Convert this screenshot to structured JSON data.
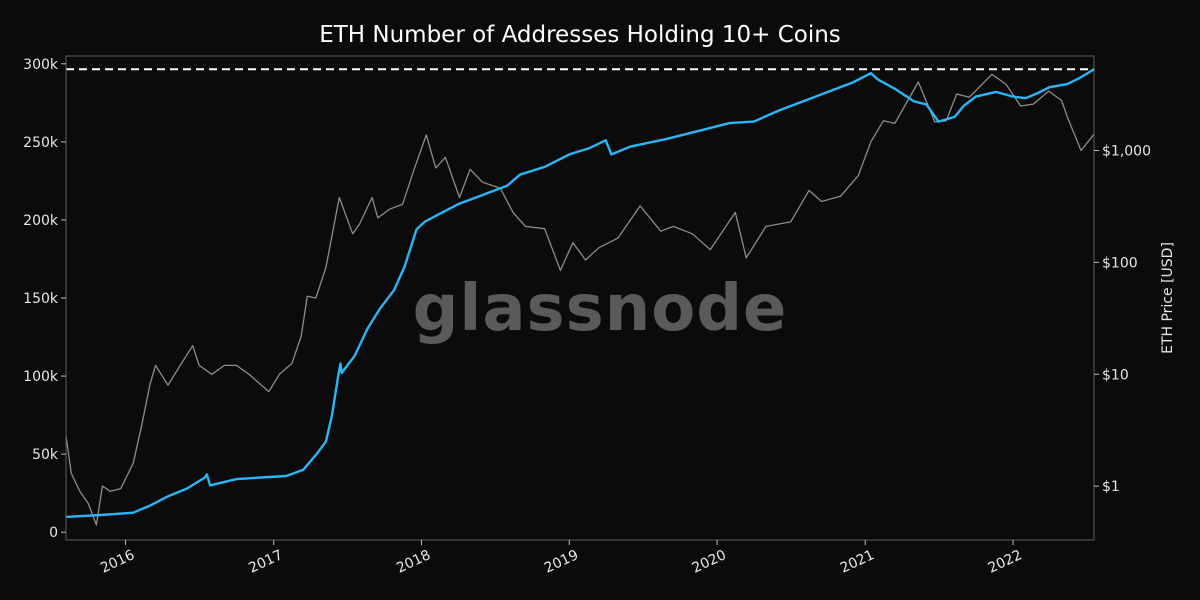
{
  "colors": {
    "background": "#0b0b0b",
    "frame": "#5c5c5c",
    "addresses": "#29b6f6",
    "price": "#8c8c8c",
    "ath_line": "#ffffff",
    "watermark": "#5a5a5a"
  },
  "chart_data": {
    "type": "line",
    "title": "ETH Number of Addresses Holding 10+ Coins",
    "watermark": "glassnode",
    "grid": false,
    "x_ticks": [
      "2016",
      "2017",
      "2018",
      "2019",
      "2020",
      "2021",
      "2022"
    ],
    "xlim": [
      "2015-08-07",
      "2022-07-20"
    ],
    "left_axis": {
      "label": "",
      "ylim": [
        -5000,
        305000
      ],
      "ticks": [
        0,
        50000,
        100000,
        150000,
        200000,
        250000,
        300000
      ],
      "tick_labels": [
        "0",
        "50k",
        "100k",
        "150k",
        "200k",
        "250k",
        "300k"
      ]
    },
    "right_axis": {
      "label": "ETH Price [USD]",
      "scale": "log",
      "ylim": [
        0.33,
        7000
      ],
      "ticks": [
        1,
        10,
        100,
        1000
      ],
      "tick_labels": [
        "$1",
        "$10",
        "$100",
        "$1,000"
      ]
    },
    "reference_line": {
      "axis": "left",
      "value": 296500,
      "style": "dashed"
    },
    "series": [
      {
        "axis": "left",
        "points": [
          [
            "2015-08-07",
            9800
          ],
          [
            "2015-11-01",
            11000
          ],
          [
            "2016-01-20",
            12500
          ],
          [
            "2016-03-01",
            17000
          ],
          [
            "2016-04-15",
            23000
          ],
          [
            "2016-06-01",
            28000
          ],
          [
            "2016-07-15",
            35000
          ],
          [
            "2016-07-20",
            37000
          ],
          [
            "2016-07-28",
            30000
          ],
          [
            "2016-10-01",
            34000
          ],
          [
            "2016-12-01",
            35000
          ],
          [
            "2017-02-01",
            36000
          ],
          [
            "2017-03-15",
            40000
          ],
          [
            "2017-04-20",
            51000
          ],
          [
            "2017-05-10",
            58000
          ],
          [
            "2017-05-25",
            75000
          ],
          [
            "2017-06-08",
            98000
          ],
          [
            "2017-06-15",
            108000
          ],
          [
            "2017-06-18",
            102000
          ],
          [
            "2017-07-20",
            113000
          ],
          [
            "2017-08-20",
            130000
          ],
          [
            "2017-09-20",
            143000
          ],
          [
            "2017-10-25",
            155000
          ],
          [
            "2017-11-20",
            170000
          ],
          [
            "2017-12-20",
            194000
          ],
          [
            "2018-01-10",
            199000
          ],
          [
            "2018-02-01",
            202000
          ],
          [
            "2018-04-01",
            210000
          ],
          [
            "2018-06-01",
            216000
          ],
          [
            "2018-08-01",
            222000
          ],
          [
            "2018-09-01",
            229000
          ],
          [
            "2018-11-01",
            234000
          ],
          [
            "2019-01-01",
            242000
          ],
          [
            "2019-02-20",
            246000
          ],
          [
            "2019-04-01",
            251000
          ],
          [
            "2019-04-15",
            242000
          ],
          [
            "2019-06-01",
            247000
          ],
          [
            "2019-09-01",
            252000
          ],
          [
            "2019-12-01",
            258000
          ],
          [
            "2020-02-01",
            262000
          ],
          [
            "2020-04-01",
            263000
          ],
          [
            "2020-06-01",
            270000
          ],
          [
            "2020-08-01",
            276000
          ],
          [
            "2020-10-01",
            282000
          ],
          [
            "2020-12-01",
            288000
          ],
          [
            "2021-01-15",
            294000
          ],
          [
            "2021-02-01",
            290000
          ],
          [
            "2021-03-15",
            284000
          ],
          [
            "2021-05-01",
            276000
          ],
          [
            "2021-06-01",
            274000
          ],
          [
            "2021-07-01",
            263000
          ],
          [
            "2021-08-10",
            266000
          ],
          [
            "2021-09-01",
            273000
          ],
          [
            "2021-10-01",
            279000
          ],
          [
            "2021-11-20",
            282000
          ],
          [
            "2022-01-01",
            279000
          ],
          [
            "2022-02-01",
            278000
          ],
          [
            "2022-03-01",
            281000
          ],
          [
            "2022-04-01",
            285000
          ],
          [
            "2022-05-15",
            287000
          ],
          [
            "2022-06-15",
            291000
          ],
          [
            "2022-07-20",
            296500
          ]
        ]
      },
      {
        "axis": "right",
        "points": [
          [
            "2015-08-07",
            2.8
          ],
          [
            "2015-08-20",
            1.3
          ],
          [
            "2015-09-10",
            0.9
          ],
          [
            "2015-10-01",
            0.7
          ],
          [
            "2015-10-21",
            0.45
          ],
          [
            "2015-11-05",
            1.0
          ],
          [
            "2015-11-25",
            0.9
          ],
          [
            "2015-12-20",
            0.95
          ],
          [
            "2016-01-20",
            1.6
          ],
          [
            "2016-02-10",
            3.5
          ],
          [
            "2016-03-01",
            8.0
          ],
          [
            "2016-03-15",
            12.0
          ],
          [
            "2016-04-15",
            8.0
          ],
          [
            "2016-05-15",
            12.0
          ],
          [
            "2016-06-15",
            18.0
          ],
          [
            "2016-07-01",
            12.0
          ],
          [
            "2016-08-01",
            10.0
          ],
          [
            "2016-09-01",
            12.0
          ],
          [
            "2016-10-01",
            12.0
          ],
          [
            "2016-11-01",
            10.0
          ],
          [
            "2016-12-20",
            7.0
          ],
          [
            "2017-01-15",
            10.0
          ],
          [
            "2017-02-15",
            12.5
          ],
          [
            "2017-03-10",
            22.0
          ],
          [
            "2017-03-25",
            50.0
          ],
          [
            "2017-04-15",
            48.0
          ],
          [
            "2017-05-10",
            90.0
          ],
          [
            "2017-06-12",
            380.0
          ],
          [
            "2017-07-15",
            180.0
          ],
          [
            "2017-08-01",
            220.0
          ],
          [
            "2017-09-01",
            380.0
          ],
          [
            "2017-09-15",
            250.0
          ],
          [
            "2017-10-15",
            300.0
          ],
          [
            "2017-11-15",
            330.0
          ],
          [
            "2017-12-15",
            700.0
          ],
          [
            "2018-01-13",
            1380.0
          ],
          [
            "2018-02-05",
            700.0
          ],
          [
            "2018-03-01",
            870.0
          ],
          [
            "2018-04-05",
            380.0
          ],
          [
            "2018-05-01",
            680.0
          ],
          [
            "2018-06-01",
            520.0
          ],
          [
            "2018-07-15",
            460.0
          ],
          [
            "2018-08-15",
            280.0
          ],
          [
            "2018-09-15",
            210.0
          ],
          [
            "2018-11-01",
            200.0
          ],
          [
            "2018-12-10",
            85.0
          ],
          [
            "2019-01-10",
            150.0
          ],
          [
            "2019-02-10",
            105.0
          ],
          [
            "2019-03-15",
            135.0
          ],
          [
            "2019-05-01",
            165.0
          ],
          [
            "2019-06-25",
            320.0
          ],
          [
            "2019-08-15",
            190.0
          ],
          [
            "2019-09-15",
            210.0
          ],
          [
            "2019-11-01",
            180.0
          ],
          [
            "2019-12-15",
            130.0
          ],
          [
            "2020-02-15",
            280.0
          ],
          [
            "2020-03-13",
            110.0
          ],
          [
            "2020-05-01",
            210.0
          ],
          [
            "2020-07-01",
            230.0
          ],
          [
            "2020-08-15",
            440.0
          ],
          [
            "2020-09-15",
            350.0
          ],
          [
            "2020-11-01",
            390.0
          ],
          [
            "2020-12-15",
            600.0
          ],
          [
            "2021-01-15",
            1200.0
          ],
          [
            "2021-02-15",
            1850.0
          ],
          [
            "2021-03-15",
            1750.0
          ],
          [
            "2021-05-12",
            4100.0
          ],
          [
            "2021-06-22",
            1800.0
          ],
          [
            "2021-07-20",
            1850.0
          ],
          [
            "2021-08-15",
            3200.0
          ],
          [
            "2021-09-15",
            3000.0
          ],
          [
            "2021-11-10",
            4800.0
          ],
          [
            "2021-12-15",
            3900.0
          ],
          [
            "2022-01-20",
            2500.0
          ],
          [
            "2022-02-20",
            2600.0
          ],
          [
            "2022-03-30",
            3400.0
          ],
          [
            "2022-05-01",
            2800.0
          ],
          [
            "2022-05-15",
            2000.0
          ],
          [
            "2022-06-18",
            1000.0
          ],
          [
            "2022-07-20",
            1400.0
          ]
        ]
      }
    ]
  }
}
